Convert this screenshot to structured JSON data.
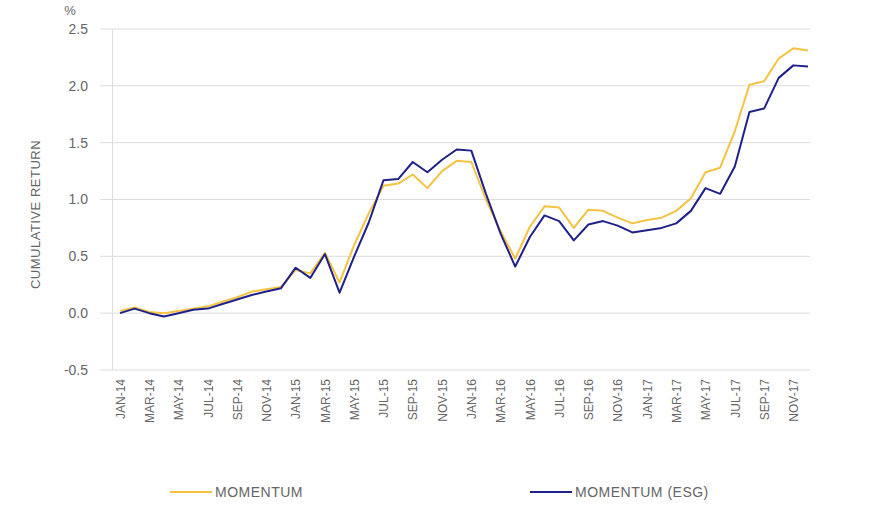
{
  "chart_data": {
    "type": "line",
    "y_label": "CUMULATIVE RETURN",
    "y_unit": "%",
    "categories": [
      "JAN-14",
      null,
      "MAR-14",
      null,
      "MAY-14",
      null,
      "JUL-14",
      null,
      "SEP-14",
      null,
      "NOV-14",
      null,
      "JAN-15",
      null,
      "MAR-15",
      null,
      "MAY-15",
      null,
      "JUL-15",
      null,
      "SEP-15",
      null,
      "NOV-15",
      null,
      "JAN-16",
      null,
      "MAR-16",
      null,
      "MAY-16",
      null,
      "JUL-16",
      null,
      "SEP-16",
      null,
      "NOV-16",
      null,
      "JAN-17",
      null,
      "MAR-17",
      null,
      "MAY-17",
      null,
      "JUL-17",
      null,
      "SEP-17",
      null,
      "NOV-17",
      null
    ],
    "series": [
      {
        "name": "MOMENTUM",
        "color": "#f5c242",
        "values": [
          0.02,
          0.05,
          0.01,
          0.0,
          0.02,
          0.04,
          0.06,
          0.1,
          0.14,
          0.19,
          0.21,
          0.23,
          0.38,
          0.35,
          0.53,
          0.27,
          0.6,
          0.88,
          1.12,
          1.14,
          1.22,
          1.1,
          1.25,
          1.34,
          1.33,
          1.0,
          0.72,
          0.48,
          0.76,
          0.94,
          0.93,
          0.75,
          0.91,
          0.9,
          0.84,
          0.79,
          0.82,
          0.84,
          0.9,
          1.01,
          1.24,
          1.28,
          1.6,
          2.01,
          2.04,
          2.24,
          2.33,
          2.31
        ]
      },
      {
        "name": "MOMENTUM (ESG)",
        "color": "#20208a",
        "values": [
          0.0,
          0.04,
          0.0,
          -0.03,
          0.0,
          0.03,
          0.04,
          0.08,
          0.12,
          0.16,
          0.19,
          0.22,
          0.4,
          0.31,
          0.52,
          0.18,
          0.5,
          0.8,
          1.17,
          1.18,
          1.33,
          1.24,
          1.35,
          1.44,
          1.43,
          1.05,
          0.7,
          0.41,
          0.67,
          0.86,
          0.81,
          0.64,
          0.78,
          0.81,
          0.77,
          0.71,
          0.73,
          0.75,
          0.79,
          0.9,
          1.1,
          1.05,
          1.29,
          1.77,
          1.8,
          2.07,
          2.18,
          2.17
        ]
      }
    ],
    "ylim": [
      -0.5,
      2.5
    ],
    "yticks": [
      -0.5,
      {
        "value": 0,
        "label": "0.0"
      },
      0.5,
      {
        "value": 1,
        "label": "1.0"
      },
      1.5,
      {
        "value": 2,
        "label": "2.0"
      },
      2.5
    ],
    "grid": true,
    "legend": "bottom"
  }
}
